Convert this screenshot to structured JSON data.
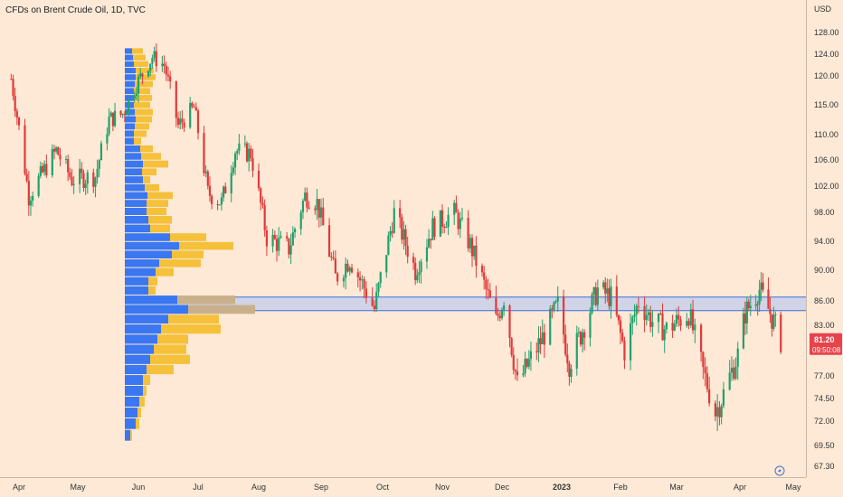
{
  "title": "CFDs on Brent Crude Oil, 1D, TVC",
  "colors": {
    "background": "#fde9d6",
    "up": "#22a06b",
    "down": "#e03a3a",
    "vp_blue": "#3a77f0",
    "vp_orange": "#f5c03a",
    "vp_grey": "#c9b08c",
    "zone_fill": "#c9cfe9",
    "zone_line": "#3a6fe0",
    "price_badge": "#e8434b"
  },
  "chart_data": {
    "type": "candlestick",
    "symbol": "CFDs on Brent Crude Oil",
    "interval": "1D",
    "source": "TVC",
    "price_axis_label": "USD",
    "y_ticks": [
      128.0,
      124.0,
      120.0,
      115.0,
      110.0,
      106.0,
      102.0,
      98.0,
      94.0,
      90.0,
      86.0,
      83.0,
      80.0,
      77.0,
      74.5,
      72.0,
      69.5,
      67.3
    ],
    "y_tick_labels": [
      "128.00",
      "124.00",
      "120.00",
      "115.00",
      "110.00",
      "106.00",
      "102.00",
      "98.00",
      "94.00",
      "90.00",
      "86.00",
      "83.00",
      "80.00",
      "77.00",
      "74.50",
      "72.00",
      "69.50",
      "67.30"
    ],
    "x_ticks": [
      {
        "label": "Apr",
        "bold": false
      },
      {
        "label": "May",
        "bold": false
      },
      {
        "label": "Jun",
        "bold": false
      },
      {
        "label": "Jul",
        "bold": false
      },
      {
        "label": "Aug",
        "bold": false
      },
      {
        "label": "Sep",
        "bold": false
      },
      {
        "label": "Oct",
        "bold": false
      },
      {
        "label": "Nov",
        "bold": false
      },
      {
        "label": "Dec",
        "bold": false
      },
      {
        "label": "2023",
        "bold": true
      },
      {
        "label": "Feb",
        "bold": false
      },
      {
        "label": "Mar",
        "bold": false
      },
      {
        "label": "Apr",
        "bold": false
      },
      {
        "label": "May",
        "bold": false
      }
    ],
    "last_price": "81.20",
    "countdown": "09:50:08",
    "zone": {
      "top": 86.5,
      "bottom": 84.8
    },
    "price_path": [
      [
        "2022-03-28",
        119.5
      ],
      [
        "2022-04-06",
        100.5
      ],
      [
        "2022-04-20",
        107.5
      ],
      [
        "2022-04-28",
        103.0
      ],
      [
        "2022-05-10",
        103.5
      ],
      [
        "2022-05-17",
        112.5
      ],
      [
        "2022-05-24",
        113.5
      ],
      [
        "2022-05-31",
        118.5
      ],
      [
        "2022-06-08",
        123.5
      ],
      [
        "2022-06-14",
        122.0
      ],
      [
        "2022-06-21",
        111.5
      ],
      [
        "2022-06-29",
        114.5
      ],
      [
        "2022-07-06",
        101.0
      ],
      [
        "2022-07-13",
        99.5
      ],
      [
        "2022-07-20",
        107.5
      ],
      [
        "2022-07-28",
        107.0
      ],
      [
        "2022-08-05",
        94.5
      ],
      [
        "2022-08-16",
        93.0
      ],
      [
        "2022-08-24",
        100.5
      ],
      [
        "2022-08-30",
        99.5
      ],
      [
        "2022-09-08",
        89.0
      ],
      [
        "2022-09-15",
        91.5
      ],
      [
        "2022-09-27",
        85.0
      ],
      [
        "2022-10-07",
        98.0
      ],
      [
        "2022-10-18",
        90.0
      ],
      [
        "2022-10-27",
        96.0
      ],
      [
        "2022-11-07",
        98.0
      ],
      [
        "2022-11-15",
        93.5
      ],
      [
        "2022-11-28",
        83.5
      ],
      [
        "2022-12-02",
        86.5
      ],
      [
        "2022-12-09",
        76.0
      ],
      [
        "2022-12-16",
        79.0
      ],
      [
        "2022-12-22",
        81.5
      ],
      [
        "2022-12-30",
        85.5
      ],
      [
        "2023-01-05",
        78.5
      ],
      [
        "2023-01-12",
        82.5
      ],
      [
        "2023-01-20",
        87.5
      ],
      [
        "2023-01-27",
        86.5
      ],
      [
        "2023-02-03",
        80.0
      ],
      [
        "2023-02-10",
        86.0
      ],
      [
        "2023-02-17",
        83.5
      ],
      [
        "2023-02-24",
        82.5
      ],
      [
        "2023-03-07",
        84.5
      ],
      [
        "2023-03-14",
        77.5
      ],
      [
        "2023-03-20",
        73.0
      ],
      [
        "2023-03-24",
        75.0
      ],
      [
        "2023-03-31",
        79.5
      ],
      [
        "2023-04-04",
        84.5
      ],
      [
        "2023-04-12",
        87.5
      ],
      [
        "2023-04-18",
        84.5
      ],
      [
        "2023-04-24",
        81.2
      ]
    ],
    "volume_profile": {
      "rows": [
        {
          "price": 124.5,
          "buy": 8,
          "sell": 12
        },
        {
          "price": 123.3,
          "buy": 9,
          "sell": 14
        },
        {
          "price": 122.1,
          "buy": 10,
          "sell": 16
        },
        {
          "price": 120.9,
          "buy": 12,
          "sell": 20
        },
        {
          "price": 119.7,
          "buy": 12,
          "sell": 22
        },
        {
          "price": 118.5,
          "buy": 11,
          "sell": 20
        },
        {
          "price": 117.3,
          "buy": 10,
          "sell": 18
        },
        {
          "price": 116.1,
          "buy": 10,
          "sell": 20
        },
        {
          "price": 114.9,
          "buy": 10,
          "sell": 18
        },
        {
          "price": 113.7,
          "buy": 11,
          "sell": 20
        },
        {
          "price": 112.5,
          "buy": 12,
          "sell": 18
        },
        {
          "price": 111.3,
          "buy": 11,
          "sell": 16
        },
        {
          "price": 110.1,
          "buy": 10,
          "sell": 14
        },
        {
          "price": 108.9,
          "buy": 10,
          "sell": 8
        },
        {
          "price": 107.7,
          "buy": 17,
          "sell": 14
        },
        {
          "price": 106.5,
          "buy": 18,
          "sell": 22
        },
        {
          "price": 105.3,
          "buy": 20,
          "sell": 28
        },
        {
          "price": 104.1,
          "buy": 19,
          "sell": 16
        },
        {
          "price": 102.9,
          "buy": 20,
          "sell": 8
        },
        {
          "price": 101.7,
          "buy": 22,
          "sell": 16
        },
        {
          "price": 100.5,
          "buy": 25,
          "sell": 28
        },
        {
          "price": 99.3,
          "buy": 24,
          "sell": 24
        },
        {
          "price": 98.1,
          "buy": 24,
          "sell": 22
        },
        {
          "price": 96.9,
          "buy": 26,
          "sell": 26
        },
        {
          "price": 95.7,
          "buy": 28,
          "sell": 22
        },
        {
          "price": 94.5,
          "buy": 50,
          "sell": 40
        },
        {
          "price": 93.3,
          "buy": 60,
          "sell": 60
        },
        {
          "price": 92.1,
          "buy": 52,
          "sell": 35
        },
        {
          "price": 90.9,
          "buy": 38,
          "sell": 46
        },
        {
          "price": 89.7,
          "buy": 34,
          "sell": 20
        },
        {
          "price": 88.5,
          "buy": 26,
          "sell": 10
        },
        {
          "price": 87.3,
          "buy": 26,
          "sell": 8
        },
        {
          "price": 86.1,
          "buy": 58,
          "sell": 64
        },
        {
          "price": 84.9,
          "buy": 70,
          "sell": 74
        },
        {
          "price": 83.7,
          "buy": 48,
          "sell": 56
        },
        {
          "price": 82.5,
          "buy": 40,
          "sell": 66
        },
        {
          "price": 81.3,
          "buy": 36,
          "sell": 34
        },
        {
          "price": 80.1,
          "buy": 32,
          "sell": 36
        },
        {
          "price": 78.9,
          "buy": 28,
          "sell": 44
        },
        {
          "price": 77.7,
          "buy": 24,
          "sell": 30
        },
        {
          "price": 76.5,
          "buy": 20,
          "sell": 8
        },
        {
          "price": 75.3,
          "buy": 20,
          "sell": 4
        },
        {
          "price": 74.1,
          "buy": 16,
          "sell": 6
        },
        {
          "price": 72.9,
          "buy": 14,
          "sell": 4
        },
        {
          "price": 71.7,
          "buy": 12,
          "sell": 4
        },
        {
          "price": 70.5,
          "buy": 6,
          "sell": 2
        }
      ]
    }
  }
}
